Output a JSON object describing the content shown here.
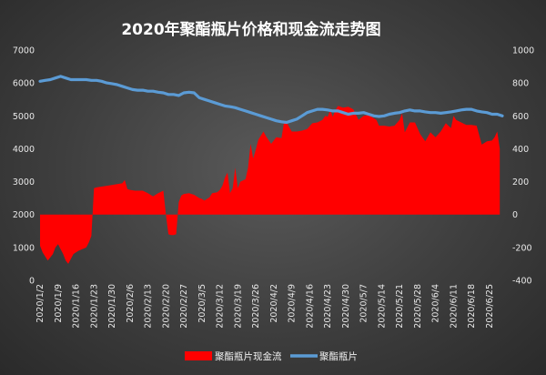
{
  "chart_data": {
    "type": "line",
    "title": "2020年聚酯瓶片价格和现金流走势图",
    "xlabel": "",
    "ylabel": "",
    "left_axis": {
      "range": [
        0,
        7000
      ],
      "ticks": [
        "0",
        "1000",
        "2000",
        "3000",
        "4000",
        "5000",
        "6000",
        "7000"
      ]
    },
    "right_axis": {
      "range": [
        -400,
        1000
      ],
      "ticks": [
        "-400",
        "-200",
        "0",
        "200",
        "400",
        "600",
        "800",
        "1000"
      ]
    },
    "x_tick_labels": [
      "2020/1/2",
      "2020/1/9",
      "2020/1/16",
      "2020/1/23",
      "2020/1/30",
      "2020/2/6",
      "2020/2/13",
      "2020/2/20",
      "2020/2/27",
      "2020/3/5",
      "2020/3/12",
      "2020/3/19",
      "2020/3/26",
      "2020/4/2",
      "2020/4/9",
      "2020/4/16",
      "2020/4/23",
      "2020/4/30",
      "2020/5/7",
      "2020/5/14",
      "2020/5/21",
      "2020/5/28",
      "2020/6/4",
      "2020/6/11",
      "2020/6/18",
      "2020/6/25"
    ],
    "x_range_days": [
      0,
      180
    ],
    "grid": false,
    "legend_position": "bottom",
    "colors": {
      "cash_flow": "#ff0000",
      "price": "#5b9bd5"
    },
    "series": [
      {
        "name": "聚酯瓶片现金流",
        "axis": "right",
        "kind": "area",
        "x": [
          0,
          1,
          3,
          4,
          5,
          6,
          7,
          8,
          9,
          10,
          11,
          13,
          14,
          15,
          18,
          19,
          20,
          21,
          22,
          24,
          26,
          28,
          30,
          32,
          33,
          34,
          35,
          37,
          38,
          40,
          42,
          44,
          46,
          48,
          49,
          50,
          51,
          52,
          53,
          54,
          55,
          56,
          58,
          60,
          62,
          63,
          64,
          66,
          67,
          69,
          70,
          71,
          72,
          73,
          74,
          75,
          76,
          77,
          78,
          80,
          81,
          82,
          83,
          84,
          85,
          86,
          87,
          88,
          90,
          92,
          94,
          95,
          96,
          98,
          100,
          102,
          104,
          106,
          108,
          110,
          111,
          112,
          113,
          114,
          115,
          116,
          118,
          120,
          122,
          124,
          126,
          128,
          130,
          131,
          132,
          134,
          136,
          138,
          140,
          141,
          142,
          144,
          146,
          148,
          150,
          152,
          154,
          156,
          158,
          160,
          161,
          162,
          164,
          166,
          168,
          170,
          172,
          174,
          176,
          177,
          178,
          179
        ],
        "y": [
          -190,
          -230,
          -280,
          -260,
          -240,
          -200,
          -180,
          -210,
          -240,
          -280,
          -300,
          -240,
          -230,
          -220,
          -200,
          -170,
          -130,
          160,
          165,
          170,
          175,
          180,
          185,
          190,
          210,
          155,
          150,
          145,
          145,
          145,
          130,
          110,
          130,
          145,
          0,
          -120,
          -125,
          -125,
          -120,
          75,
          115,
          125,
          130,
          120,
          100,
          95,
          85,
          105,
          130,
          135,
          150,
          175,
          225,
          255,
          130,
          160,
          285,
          160,
          200,
          215,
          285,
          430,
          340,
          395,
          455,
          480,
          505,
          475,
          430,
          470,
          465,
          560,
          560,
          505,
          505,
          510,
          520,
          555,
          560,
          575,
          600,
          595,
          635,
          595,
          635,
          660,
          650,
          655,
          640,
          575,
          600,
          605,
          585,
          575,
          540,
          540,
          535,
          540,
          575,
          615,
          500,
          560,
          560,
          490,
          445,
          500,
          470,
          505,
          555,
          525,
          600,
          575,
          560,
          545,
          545,
          540,
          425,
          445,
          450,
          470,
          505,
          400
        ]
      },
      {
        "name": "聚酯瓶片",
        "axis": "left",
        "kind": "line",
        "x": [
          0,
          2,
          4,
          6,
          8,
          10,
          12,
          14,
          16,
          18,
          20,
          22,
          24,
          26,
          28,
          30,
          32,
          34,
          36,
          38,
          40,
          42,
          44,
          46,
          48,
          50,
          52,
          54,
          56,
          58,
          60,
          62,
          64,
          66,
          68,
          70,
          72,
          74,
          76,
          78,
          80,
          82,
          84,
          86,
          88,
          90,
          92,
          94,
          96,
          98,
          100,
          102,
          104,
          106,
          108,
          110,
          112,
          114,
          116,
          118,
          120,
          122,
          124,
          126,
          128,
          130,
          132,
          134,
          136,
          138,
          140,
          142,
          144,
          146,
          148,
          150,
          152,
          154,
          156,
          158,
          160,
          162,
          164,
          166,
          168,
          170,
          172,
          174,
          176,
          178,
          180
        ],
        "y": [
          6050,
          6080,
          6100,
          6150,
          6200,
          6150,
          6100,
          6100,
          6100,
          6100,
          6080,
          6080,
          6050,
          6000,
          5980,
          5950,
          5900,
          5850,
          5800,
          5780,
          5780,
          5750,
          5750,
          5720,
          5700,
          5650,
          5650,
          5620,
          5700,
          5720,
          5700,
          5550,
          5500,
          5450,
          5400,
          5350,
          5300,
          5280,
          5250,
          5200,
          5150,
          5100,
          5050,
          5000,
          4950,
          4900,
          4850,
          4820,
          4800,
          4850,
          4900,
          5000,
          5100,
          5150,
          5200,
          5200,
          5180,
          5150,
          5150,
          5100,
          5050,
          5080,
          5080,
          5100,
          5050,
          5000,
          4980,
          5000,
          5050,
          5080,
          5100,
          5150,
          5180,
          5150,
          5150,
          5120,
          5100,
          5100,
          5080,
          5100,
          5120,
          5150,
          5180,
          5200,
          5200,
          5150,
          5120,
          5100,
          5050,
          5050,
          5000
        ]
      }
    ]
  }
}
